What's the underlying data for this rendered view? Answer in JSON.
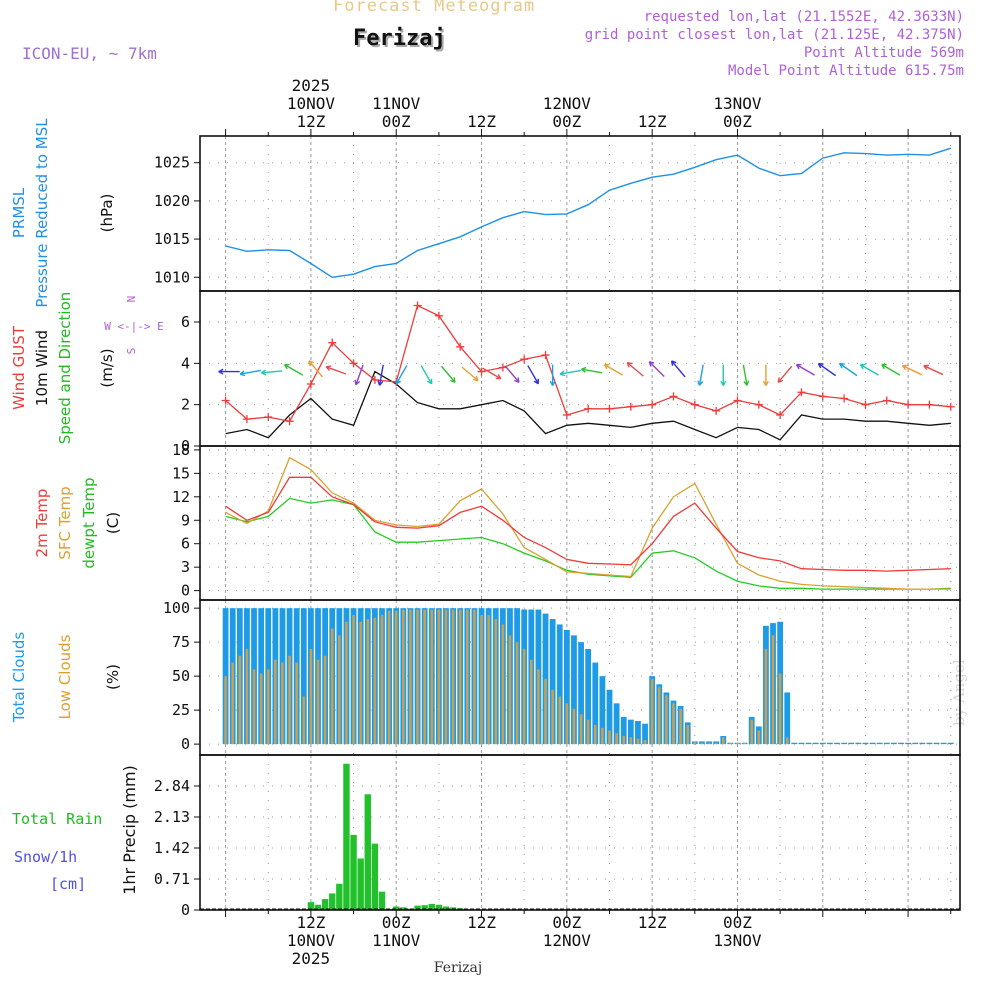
{
  "header": {
    "title": "Forecast Meteogram",
    "location": "Ferizaj",
    "model": "ICON-EU, ~ 7km",
    "requested": "requested lon,lat (21.1552E, 42.3633N)",
    "grid_point": "grid point closest lon,lat (21.125E, 42.375N)",
    "point_altitude": "Point Altitude 569m",
    "model_altitude": "Model Point Altitude 615.75m",
    "watermark": "by Angel",
    "footer": "Ferizaj"
  },
  "colors": {
    "pressure": "#1e90e6",
    "gust": "#ee3b3b",
    "wind10m": "#111111",
    "temp2m": "#ee3b3b",
    "sfc": "#dca030",
    "dewpt": "#22cc22",
    "total_clouds": "#1e9be6",
    "low_clouds": "#c8a055",
    "precip": "#22c02a",
    "label_purple": "#b060d8",
    "label_blue": "#5050e6"
  },
  "chart_data": [
    {
      "type": "line",
      "name": "pressure",
      "title": "PRMSL Pressure Reduced to MSL",
      "ylabel": "(hPa)",
      "ylim": [
        1008.2,
        1028.5
      ],
      "yticks": [
        1010,
        1015,
        1020,
        1025
      ],
      "x_hours": [
        0,
        3,
        6,
        9,
        12,
        15,
        18,
        21,
        24,
        27,
        30,
        33,
        36,
        39,
        42,
        45,
        48,
        51,
        54,
        57,
        60,
        63,
        66,
        69,
        72,
        75,
        78,
        81,
        84,
        87,
        90,
        93,
        96,
        99,
        102
      ],
      "values": [
        1014.1,
        1013.4,
        1013.6,
        1013.5,
        1011.8,
        1010.0,
        1010.4,
        1011.4,
        1011.8,
        1013.5,
        1014.4,
        1015.3,
        1016.6,
        1017.8,
        1018.6,
        1018.2,
        1018.3,
        1019.5,
        1021.4,
        1022.3,
        1023.1,
        1023.5,
        1024.4,
        1025.4,
        1026.0,
        1024.3,
        1023.3,
        1023.6,
        1025.6,
        1026.3,
        1026.2,
        1026.0,
        1026.1,
        1026.0,
        1026.9
      ]
    },
    {
      "type": "line",
      "name": "wind",
      "title": "Wind GUST / 10m Wind Speed and Direction",
      "ylabel": "(m/s)",
      "ylim": [
        0,
        7.5
      ],
      "yticks": [
        0,
        2,
        4,
        6
      ],
      "compass": [
        "N",
        "W <-|-> E",
        "S"
      ],
      "x_hours": [
        0,
        3,
        6,
        9,
        12,
        15,
        18,
        21,
        24,
        27,
        30,
        33,
        36,
        39,
        42,
        45,
        48,
        51,
        54,
        57,
        60,
        63,
        66,
        69,
        72,
        75,
        78,
        81,
        84,
        87,
        90,
        93,
        96,
        99,
        102
      ],
      "gust": [
        2.2,
        1.3,
        1.4,
        1.2,
        3.0,
        5.0,
        4.0,
        3.2,
        3.1,
        6.8,
        6.3,
        4.8,
        3.6,
        3.8,
        4.2,
        4.4,
        1.5,
        1.8,
        1.8,
        1.9,
        2.0,
        2.4,
        2.0,
        1.7,
        2.2,
        2.0,
        1.5,
        2.6,
        2.4,
        2.3,
        2.0,
        2.2,
        2.0,
        2.0,
        1.9
      ],
      "wind10m": [
        0.6,
        0.8,
        0.4,
        1.5,
        2.3,
        1.3,
        1.0,
        3.6,
        3.0,
        2.1,
        1.8,
        1.8,
        2.0,
        2.2,
        1.7,
        0.6,
        1.0,
        1.1,
        1.0,
        0.9,
        1.1,
        1.2,
        0.8,
        0.4,
        0.9,
        0.8,
        0.3,
        1.5,
        1.3,
        1.3,
        1.2,
        1.2,
        1.1,
        1.0,
        1.1
      ],
      "barb_x_hours": [
        1,
        4,
        7,
        10,
        13,
        16,
        19,
        22,
        25,
        28,
        31,
        34,
        37,
        40,
        43,
        46,
        49,
        52,
        55,
        58,
        61,
        64,
        67,
        70,
        73,
        76,
        79,
        82,
        85,
        88,
        91,
        94,
        97,
        100
      ],
      "barb_dir_deg": [
        270,
        260,
        265,
        300,
        320,
        290,
        200,
        190,
        210,
        150,
        140,
        130,
        120,
        140,
        150,
        180,
        260,
        280,
        300,
        310,
        315,
        320,
        190,
        180,
        170,
        180,
        220,
        300,
        305,
        305,
        300,
        300,
        295,
        295
      ]
    },
    {
      "type": "line",
      "name": "temperature",
      "title": "2m Temp / SFC Temp / dewpt Temp",
      "ylabel": "(C)",
      "ylim": [
        -1.2,
        18.5
      ],
      "yticks": [
        0,
        3,
        6,
        9,
        12,
        15,
        18
      ],
      "x_hours": [
        0,
        3,
        6,
        9,
        12,
        15,
        18,
        21,
        24,
        27,
        30,
        33,
        36,
        39,
        42,
        45,
        48,
        51,
        54,
        57,
        60,
        63,
        66,
        69,
        72,
        75,
        78,
        81,
        84,
        87,
        90,
        93,
        96,
        99,
        102
      ],
      "temp2m": [
        10.8,
        9.0,
        10.0,
        14.5,
        14.5,
        12.0,
        11.0,
        8.8,
        8.1,
        8.0,
        8.3,
        10.0,
        10.8,
        9.0,
        6.8,
        5.5,
        4.0,
        3.5,
        3.4,
        3.3,
        6.0,
        9.5,
        11.2,
        8.0,
        5.0,
        4.2,
        3.8,
        2.8,
        2.7,
        2.6,
        2.6,
        2.5,
        2.6,
        2.7,
        2.8
      ],
      "sfc": [
        10.0,
        8.6,
        10.2,
        17.0,
        15.5,
        12.5,
        11.2,
        9.0,
        8.4,
        8.2,
        8.5,
        11.5,
        13.0,
        9.8,
        5.5,
        4.0,
        2.4,
        2.2,
        2.0,
        1.8,
        8.0,
        12.0,
        13.7,
        8.5,
        3.5,
        2.0,
        1.2,
        0.8,
        0.6,
        0.5,
        0.4,
        0.3,
        0.2,
        0.2,
        0.2
      ],
      "dewpt": [
        9.5,
        8.8,
        9.5,
        11.8,
        11.2,
        11.6,
        11.0,
        7.5,
        6.2,
        6.2,
        6.4,
        6.6,
        6.8,
        6.0,
        4.8,
        3.8,
        2.6,
        2.1,
        1.9,
        1.7,
        4.8,
        5.1,
        4.2,
        2.5,
        1.2,
        0.6,
        0.3,
        0.3,
        0.2,
        0.2,
        0.2,
        0.2,
        0.2,
        0.2,
        0.3
      ]
    },
    {
      "type": "bar",
      "name": "clouds",
      "title": "Total Clouds / Low Clouds",
      "ylabel": "(%)",
      "ylim": [
        -8,
        106
      ],
      "yticks": [
        0,
        25,
        50,
        75,
        100
      ],
      "x_hours": [
        0,
        1,
        2,
        3,
        4,
        5,
        6,
        7,
        8,
        9,
        10,
        11,
        12,
        13,
        14,
        15,
        16,
        17,
        18,
        19,
        20,
        21,
        22,
        23,
        24,
        25,
        26,
        27,
        28,
        29,
        30,
        31,
        32,
        33,
        34,
        35,
        36,
        37,
        38,
        39,
        40,
        41,
        42,
        43,
        44,
        45,
        46,
        47,
        48,
        49,
        50,
        51,
        52,
        53,
        54,
        55,
        56,
        57,
        58,
        59,
        60,
        61,
        62,
        63,
        64,
        65,
        66,
        67,
        68,
        69,
        70,
        71,
        72,
        73,
        74,
        75,
        76,
        77,
        78,
        79,
        80,
        81,
        82,
        83,
        84,
        85,
        86,
        87,
        88,
        89,
        90,
        91,
        92,
        93,
        94,
        95,
        96,
        97,
        98,
        99,
        100,
        101,
        102
      ],
      "total": [
        100,
        100,
        100,
        100,
        100,
        100,
        100,
        100,
        100,
        100,
        100,
        100,
        100,
        100,
        100,
        100,
        100,
        100,
        100,
        100,
        100,
        100,
        100,
        100,
        100,
        100,
        100,
        100,
        100,
        100,
        100,
        100,
        100,
        100,
        100,
        100,
        100,
        100,
        100,
        100,
        100,
        100,
        99,
        99,
        99,
        96,
        92,
        88,
        84,
        80,
        75,
        70,
        60,
        50,
        40,
        30,
        20,
        18,
        17,
        15,
        50,
        44,
        38,
        32,
        28,
        16,
        2,
        2,
        2,
        2,
        6,
        1,
        1,
        1,
        20,
        13,
        87,
        89,
        90,
        38,
        1,
        1,
        1,
        1,
        1,
        1,
        1,
        1,
        1,
        1,
        1,
        1,
        1,
        1,
        1,
        1,
        1,
        1,
        1,
        1,
        1,
        1,
        1
      ],
      "low": [
        50,
        60,
        65,
        70,
        55,
        52,
        55,
        62,
        60,
        65,
        60,
        35,
        70,
        62,
        65,
        85,
        80,
        90,
        95,
        90,
        92,
        93,
        95,
        98,
        98,
        99,
        99,
        99,
        99,
        99,
        99,
        99,
        99,
        99,
        99,
        99,
        95,
        95,
        92,
        88,
        80,
        75,
        70,
        62,
        55,
        48,
        40,
        35,
        30,
        26,
        22,
        18,
        14,
        12,
        10,
        8,
        6,
        5,
        4,
        3,
        48,
        42,
        36,
        30,
        26,
        14,
        2,
        1,
        1,
        1,
        5,
        1,
        1,
        1,
        18,
        10,
        70,
        80,
        52,
        5,
        0,
        0,
        0,
        0,
        0,
        0,
        0,
        0,
        0,
        0,
        0,
        0,
        0,
        0,
        0,
        0,
        0,
        0,
        0,
        0,
        0,
        0,
        0
      ]
    },
    {
      "type": "bar",
      "name": "precip",
      "title": "Total Rain / Snow/1h [cm]",
      "ylabel": "1hr Precip (mm)",
      "ylim": [
        0,
        3.55
      ],
      "yticks": [
        0,
        0.71,
        1.42,
        2.13,
        2.84
      ],
      "ytick_labels": [
        "0",
        "0.71",
        "1.42",
        "2.13",
        "2.84"
      ],
      "x_hours": [
        12,
        13,
        14,
        15,
        16,
        17,
        18,
        19,
        20,
        21,
        22,
        23,
        24,
        25,
        26,
        27,
        28,
        29,
        30,
        31,
        32,
        33,
        34,
        35,
        36
      ],
      "values": [
        0.18,
        0.12,
        0.25,
        0.38,
        0.6,
        3.35,
        1.72,
        1.18,
        2.65,
        1.52,
        0.42,
        0.02,
        0.08,
        0.06,
        0.03,
        0.1,
        0.11,
        0.14,
        0.12,
        0.08,
        0.06,
        0.04,
        0.02,
        0.0,
        0.0
      ]
    }
  ],
  "time_axis": {
    "top_labels": [
      {
        "hours": 12,
        "lines": [
          "2025",
          "10NOV",
          "12Z"
        ]
      },
      {
        "hours": 24,
        "lines": [
          "11NOV",
          "00Z"
        ]
      },
      {
        "hours": 36,
        "lines": [
          "12Z"
        ]
      },
      {
        "hours": 48,
        "lines": [
          "12NOV",
          "00Z"
        ]
      },
      {
        "hours": 60,
        "lines": [
          "12Z"
        ]
      },
      {
        "hours": 72,
        "lines": [
          "13NOV",
          "00Z"
        ]
      }
    ],
    "bottom_labels": [
      {
        "hours": 12,
        "lines": [
          "12Z",
          "10NOV",
          "2025"
        ]
      },
      {
        "hours": 24,
        "lines": [
          "00Z",
          "11NOV"
        ]
      },
      {
        "hours": 36,
        "lines": [
          "12Z"
        ]
      },
      {
        "hours": 48,
        "lines": [
          "00Z",
          "12NOV"
        ]
      },
      {
        "hours": 60,
        "lines": [
          "12Z"
        ]
      },
      {
        "hours": 72,
        "lines": [
          "00Z",
          "13NOV"
        ]
      }
    ]
  },
  "side_labels": {
    "pressure": [
      {
        "text": "PRMSL",
        "color": "#1e90e6"
      },
      {
        "text": "Pressure Reduced to MSL",
        "color": "#1e90e6"
      }
    ],
    "wind": [
      {
        "text": "Wind GUST",
        "color": "#ee3b3b"
      },
      {
        "text": "10m Wind",
        "color": "#111111"
      },
      {
        "text": "Speed and Direction",
        "color": "#22bb22"
      }
    ],
    "temperature": [
      {
        "text": "2m Temp",
        "color": "#ee3b3b"
      },
      {
        "text": "SFC Temp",
        "color": "#dca030"
      },
      {
        "text": "dewpt Temp",
        "color": "#22bb22"
      }
    ],
    "clouds": [
      {
        "text": "Total Clouds",
        "color": "#1e9be6"
      },
      {
        "text": "Low Clouds",
        "color": "#dca030"
      }
    ],
    "precip_left": [
      {
        "text": "Total  Rain",
        "color": "#22bb22"
      },
      {
        "text": "Snow/1h",
        "color": "#5050e6"
      },
      {
        "text": "[cm]",
        "color": "#5050e6"
      }
    ]
  }
}
